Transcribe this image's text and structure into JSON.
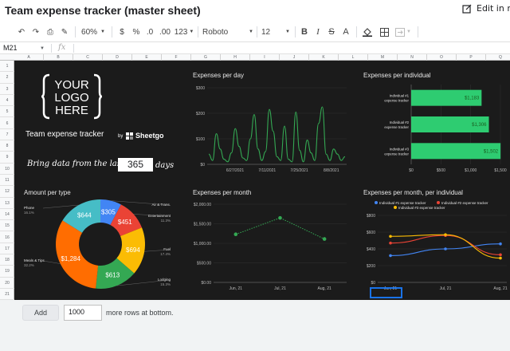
{
  "header": {
    "title": "Team expense tracker (master sheet)",
    "edit_label": "Edit in m"
  },
  "toolbar": {
    "zoom": "60%",
    "currency": "$",
    "percent": "%",
    "dec_down": ".0",
    "dec_up": ".00",
    "number_format": "123",
    "font": "Roboto",
    "font_size": "12",
    "bold": "B",
    "italic": "I",
    "strike": "S",
    "text_color": "A"
  },
  "formula_bar": {
    "cell": "M21",
    "fx": "fx",
    "value": ""
  },
  "columns": [
    "A",
    "B",
    "C",
    "D",
    "E",
    "F",
    "G",
    "H",
    "I",
    "J",
    "K",
    "L",
    "M",
    "N",
    "O",
    "P",
    "Q"
  ],
  "rows": [
    "1",
    "2",
    "3",
    "4",
    "5",
    "6",
    "7",
    "8",
    "9",
    "10",
    "11",
    "12",
    "13",
    "14",
    "15",
    "16",
    "17",
    "18",
    "19",
    "20",
    "21"
  ],
  "logo": {
    "line1": "YOUR",
    "line2": "LOGO",
    "line3": "HERE"
  },
  "branding": {
    "tracker": "Team expense tracker",
    "by": "by",
    "brand": "Sheetgo"
  },
  "filter": {
    "prefix": "Bring data from the last",
    "days_value": "365",
    "suffix": "days"
  },
  "charts": {
    "daily_title": "Expenses per day",
    "individual_title": "Expenses per individual",
    "type_title": "Amount per type",
    "month_title": "Expenses per month",
    "month_individual_title": "Expenses per month, per individual"
  },
  "footer": {
    "add_label": "Add",
    "rows_value": "1000",
    "more_rows_text": "more rows at bottom."
  },
  "chart_data": [
    {
      "type": "line",
      "title": "Expenses per day",
      "x_ticks": [
        "6/27/2021",
        "7/11/2021",
        "7/25/2021",
        "8/8/2021"
      ],
      "y_ticks": [
        "$0",
        "$100",
        "$200",
        "$300"
      ],
      "ylim": [
        0,
        300
      ],
      "color": "#34a853",
      "values": [
        40,
        15,
        120,
        60,
        20,
        10,
        45,
        140,
        70,
        25,
        15,
        100,
        195,
        60,
        15,
        50,
        215,
        130,
        30,
        15,
        150,
        20,
        10,
        205,
        55,
        10,
        95,
        45,
        15,
        160,
        225,
        40,
        15,
        60,
        40,
        15,
        30
      ]
    },
    {
      "type": "bar",
      "title": "Expenses per individual",
      "categories": [
        "Individual #1 expense tracker",
        "Individual #2 expense tracker",
        "Individual #3 expense tracker"
      ],
      "values": [
        1183,
        1306,
        1502
      ],
      "labels": [
        "$1,183",
        "$1,306",
        "$1,502"
      ],
      "x_ticks": [
        "$0",
        "$500",
        "$1,000",
        "$1,500"
      ],
      "xlim": [
        0,
        1500
      ],
      "color": "#2ecc71"
    },
    {
      "type": "pie",
      "title": "Amount per type",
      "slices": [
        {
          "name": "Air & Trans.",
          "value": 305,
          "pct": "",
          "label": "$305",
          "color": "#4285f4"
        },
        {
          "name": "Entertainment",
          "value": 451,
          "pct": "11.3%",
          "label": "$451",
          "color": "#ea4335"
        },
        {
          "name": "Fuel",
          "value": 694,
          "pct": "17.4%",
          "label": "$694",
          "color": "#fbbc04"
        },
        {
          "name": "Lodging",
          "value": 613,
          "pct": "15.3%",
          "label": "$613",
          "color": "#34a853"
        },
        {
          "name": "Meals & Tips",
          "value": 1284,
          "pct": "32.2%",
          "label": "$1,284",
          "color": "#ff6d01"
        },
        {
          "name": "Phone",
          "value": 644,
          "pct": "16.1%",
          "label": "$644",
          "color": "#46bdc6"
        }
      ]
    },
    {
      "type": "line",
      "title": "Expenses per month",
      "categories": [
        "Jun, 21",
        "Jul, 21",
        "Aug, 21"
      ],
      "values": [
        1230,
        1650,
        1110
      ],
      "y_ticks": [
        "$0.00",
        "$500.00",
        "$1,000.00",
        "$1,500.00",
        "$2,000.00"
      ],
      "ylim": [
        0,
        2000
      ],
      "color": "#34a853"
    },
    {
      "type": "line",
      "title": "Expenses per month, per individual",
      "categories": [
        "Jun, 21",
        "Jul, 21",
        "Aug, 21"
      ],
      "y_ticks": [
        "$0",
        "$200",
        "$400",
        "$600",
        "$800"
      ],
      "ylim": [
        0,
        800
      ],
      "series": [
        {
          "name": "Individual #1 expense tracker",
          "values": [
            320,
            400,
            460
          ],
          "color": "#4285f4"
        },
        {
          "name": "Individual #2 expense tracker",
          "values": [
            470,
            560,
            330
          ],
          "color": "#ea4335"
        },
        {
          "name": "Individual #3 expense tracker",
          "values": [
            550,
            570,
            290
          ],
          "color": "#fbbc04"
        }
      ]
    }
  ]
}
